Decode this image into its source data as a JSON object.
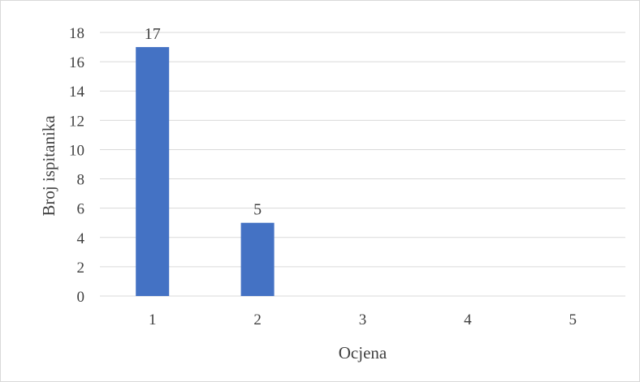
{
  "chart_data": {
    "type": "bar",
    "categories": [
      "1",
      "2",
      "3",
      "4",
      "5"
    ],
    "series": [
      {
        "values": [
          17,
          5,
          0,
          0,
          0
        ]
      }
    ],
    "data_labels": [
      "17",
      "5",
      "",
      "",
      ""
    ],
    "xlabel": "Ocjena",
    "ylabel": "Broj ispitanika",
    "ylim": [
      0,
      18
    ],
    "yticks": [
      "0",
      "2",
      "4",
      "6",
      "8",
      "10",
      "12",
      "14",
      "16",
      "18"
    ],
    "grid": true,
    "legend": "none",
    "bar_color": "#4472c4",
    "grid_color": "#d9d9d9",
    "text_color": "#404040"
  }
}
